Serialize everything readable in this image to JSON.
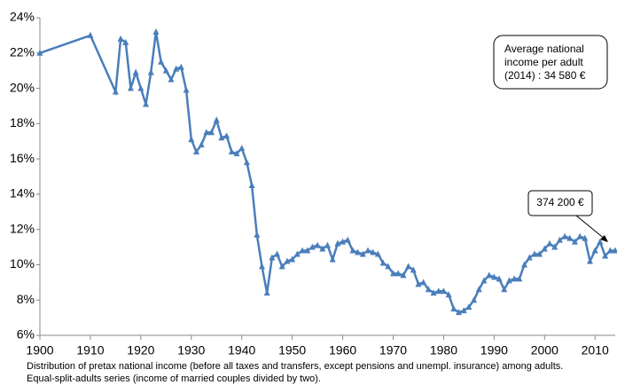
{
  "chart_data": {
    "type": "line",
    "x": [
      1900,
      1910,
      1915,
      1916,
      1917,
      1918,
      1919,
      1920,
      1921,
      1922,
      1923,
      1924,
      1925,
      1926,
      1927,
      1928,
      1929,
      1930,
      1931,
      1932,
      1933,
      1934,
      1935,
      1936,
      1937,
      1938,
      1939,
      1940,
      1941,
      1942,
      1943,
      1944,
      1945,
      1946,
      1947,
      1948,
      1949,
      1950,
      1951,
      1952,
      1953,
      1954,
      1955,
      1956,
      1957,
      1958,
      1959,
      1960,
      1961,
      1962,
      1963,
      1964,
      1965,
      1966,
      1967,
      1968,
      1969,
      1970,
      1971,
      1972,
      1973,
      1974,
      1975,
      1976,
      1977,
      1978,
      1979,
      1980,
      1981,
      1982,
      1983,
      1984,
      1985,
      1986,
      1987,
      1988,
      1989,
      1990,
      1991,
      1992,
      1993,
      1994,
      1995,
      1996,
      1997,
      1998,
      1999,
      2000,
      2001,
      2002,
      2003,
      2004,
      2005,
      2006,
      2007,
      2008,
      2009,
      2010,
      2011,
      2012,
      2013,
      2014
    ],
    "series": [
      {
        "color": "#4a7ebb",
        "values": [
          22.0,
          23.0,
          19.8,
          22.8,
          22.6,
          20.0,
          20.9,
          20.0,
          19.1,
          20.9,
          23.2,
          21.5,
          21.0,
          20.5,
          21.1,
          21.2,
          19.9,
          17.1,
          16.4,
          16.8,
          17.5,
          17.5,
          18.2,
          17.2,
          17.3,
          16.4,
          16.3,
          16.6,
          15.8,
          14.5,
          11.7,
          9.9,
          8.4,
          10.4,
          10.6,
          9.9,
          10.2,
          10.3,
          10.6,
          10.8,
          10.8,
          11.0,
          11.1,
          10.9,
          11.1,
          10.3,
          11.2,
          11.3,
          11.4,
          10.8,
          10.7,
          10.6,
          10.8,
          10.7,
          10.6,
          10.1,
          9.9,
          9.5,
          9.5,
          9.4,
          9.9,
          9.7,
          8.9,
          9.0,
          8.6,
          8.4,
          8.5,
          8.5,
          8.3,
          7.5,
          7.3,
          7.4,
          7.6,
          8.0,
          8.6,
          9.1,
          9.4,
          9.3,
          9.2,
          8.6,
          9.1,
          9.2,
          9.2,
          10.0,
          10.4,
          10.6,
          10.6,
          10.9,
          11.2,
          11.0,
          11.4,
          11.6,
          11.5,
          11.3,
          11.6,
          11.5,
          10.2,
          10.8,
          11.3,
          10.5,
          10.8,
          10.8
        ]
      }
    ],
    "xlim": [
      1900,
      2014
    ],
    "xticks": [
      1900,
      1910,
      1920,
      1930,
      1940,
      1950,
      1960,
      1970,
      1980,
      1990,
      2000,
      2010
    ],
    "ylim": [
      6,
      24
    ],
    "yticks": [
      {
        "value": 6,
        "label": "6%"
      },
      {
        "value": 8,
        "label": "8%"
      },
      {
        "value": 10,
        "label": "10%"
      },
      {
        "value": 12,
        "label": "12%"
      },
      {
        "value": 14,
        "label": "14%"
      },
      {
        "value": 16,
        "label": "16%"
      },
      {
        "value": 18,
        "label": "18%"
      },
      {
        "value": 20,
        "label": "20%"
      },
      {
        "value": 22,
        "label": "22%"
      },
      {
        "value": 24,
        "label": "24%"
      }
    ],
    "grid": false,
    "annotations": [
      [
        "Average national",
        "income per adult",
        "(2014) : 34 580 €"
      ],
      [
        "374 200 €"
      ]
    ],
    "notes": [
      "Distribution of pretax national income (before all taxes and transfers, except pensions and unempl. insurance) among adults.",
      "Equal-split-adults series (income of married couples divided by two)."
    ]
  }
}
